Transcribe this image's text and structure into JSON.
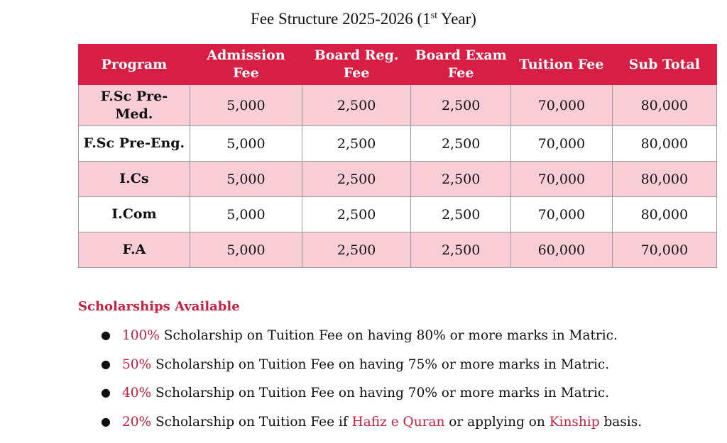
{
  "title": {
    "main": "Fee Structure 2025-2026 (1",
    "sup": "st",
    "end": " Year)"
  },
  "table": {
    "headers": [
      "Program",
      "Admission Fee",
      "Board Reg. Fee",
      "Board Exam Fee",
      "Tuition Fee",
      "Sub Total"
    ],
    "rows": [
      [
        "F.Sc Pre-Med.",
        "5,000",
        "2,500",
        "2,500",
        "70,000",
        "80,000"
      ],
      [
        "F.Sc Pre-Eng.",
        "5,000",
        "2,500",
        "2,500",
        "70,000",
        "80,000"
      ],
      [
        "I.Cs",
        "5,000",
        "2,500",
        "2,500",
        "70,000",
        "80,000"
      ],
      [
        "I.Com",
        "5,000",
        "2,500",
        "2,500",
        "70,000",
        "80,000"
      ],
      [
        "F.A",
        "5,000",
        "2,500",
        "2,500",
        "60,000",
        "70,000"
      ]
    ]
  },
  "scholarships": {
    "heading": "Scholarships Available",
    "items": [
      {
        "pct": "100%",
        "text": " Scholarship on Tuition Fee on having 80% or more marks in Matric."
      },
      {
        "pct": "50%",
        "text": " Scholarship on Tuition Fee on having 75% or more marks in Matric."
      },
      {
        "pct": "40%",
        "text": " Scholarship on Tuition Fee on having 70% or more marks in Matric."
      },
      {
        "pct": "20%",
        "text": " Scholarship on Tuition Fee if ",
        "h1": "Hafiz e Quran",
        "mid": " or applying on ",
        "h2": "Kinship",
        "end": " basis."
      }
    ]
  },
  "colors": {
    "header": "#d71f46",
    "row_alt": "#f9cdd5",
    "accent": "#c8203f"
  }
}
